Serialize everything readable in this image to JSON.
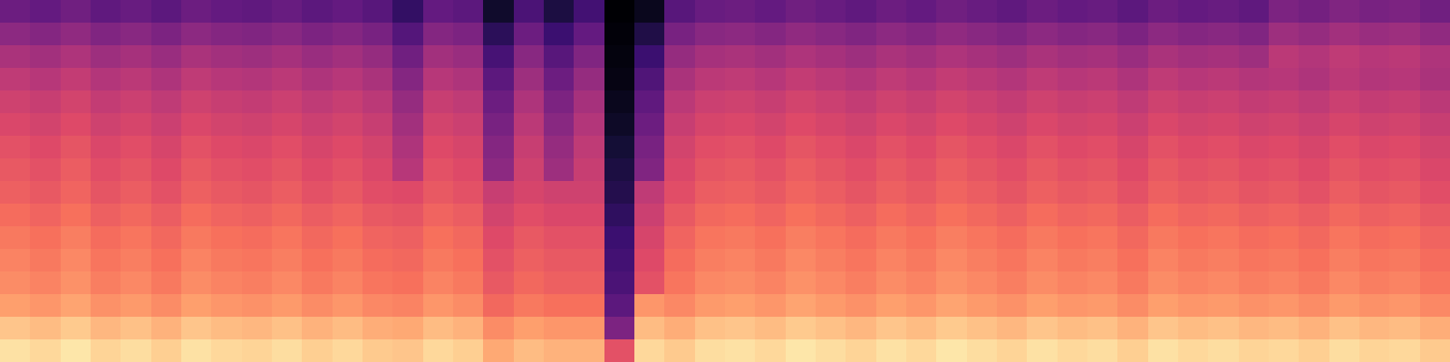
{
  "chart_data": {
    "type": "heatmap",
    "tick_labels": false,
    "zlim": [
      0,
      100
    ],
    "cells": [
      [
        94,
        92,
        95,
        91,
        93,
        90,
        94,
        92,
        91,
        93,
        90,
        92,
        89,
        88,
        92,
        90,
        82,
        86,
        84,
        84,
        62,
        92,
        89,
        93,
        94,
        92,
        95,
        93,
        91,
        94,
        92,
        95,
        93,
        91,
        94,
        92,
        93,
        90,
        94,
        92,
        93,
        91,
        92,
        90,
        93,
        91,
        92,
        89
      ],
      [
        88,
        86,
        89,
        85,
        87,
        84,
        88,
        86,
        85,
        87,
        84,
        86,
        83,
        82,
        86,
        84,
        76,
        80,
        78,
        78,
        36,
        86,
        83,
        87,
        88,
        86,
        89,
        87,
        85,
        88,
        86,
        89,
        87,
        85,
        88,
        86,
        87,
        84,
        88,
        86,
        87,
        85,
        86,
        84,
        87,
        85,
        86,
        83
      ],
      [
        80,
        78,
        81,
        77,
        79,
        76,
        80,
        78,
        77,
        79,
        76,
        78,
        75,
        74,
        78,
        76,
        68,
        72,
        70,
        70,
        28,
        78,
        75,
        79,
        80,
        78,
        81,
        79,
        77,
        80,
        78,
        81,
        79,
        77,
        80,
        78,
        79,
        76,
        80,
        78,
        79,
        77,
        78,
        76,
        79,
        77,
        78,
        75
      ],
      [
        76,
        74,
        77,
        73,
        75,
        72,
        76,
        74,
        73,
        75,
        72,
        74,
        71,
        70,
        74,
        72,
        64,
        68,
        66,
        66,
        24,
        62,
        71,
        75,
        76,
        74,
        77,
        75,
        73,
        76,
        74,
        77,
        75,
        73,
        76,
        74,
        75,
        72,
        76,
        74,
        75,
        73,
        74,
        72,
        75,
        73,
        74,
        71
      ],
      [
        74,
        72,
        75,
        71,
        73,
        70,
        74,
        72,
        71,
        73,
        70,
        72,
        69,
        68,
        72,
        70,
        62,
        66,
        64,
        64,
        22,
        60,
        69,
        73,
        74,
        72,
        75,
        73,
        71,
        74,
        72,
        75,
        73,
        71,
        74,
        72,
        73,
        70,
        74,
        72,
        73,
        71,
        72,
        70,
        73,
        71,
        72,
        69
      ],
      [
        72,
        70,
        73,
        69,
        71,
        68,
        72,
        70,
        69,
        71,
        68,
        70,
        67,
        66,
        70,
        68,
        60,
        64,
        62,
        62,
        20,
        58,
        67,
        71,
        72,
        70,
        73,
        71,
        69,
        72,
        70,
        73,
        71,
        69,
        72,
        70,
        71,
        68,
        72,
        70,
        71,
        69,
        70,
        68,
        71,
        69,
        70,
        67
      ],
      [
        69,
        67,
        70,
        66,
        68,
        65,
        69,
        67,
        66,
        68,
        65,
        67,
        64,
        63,
        67,
        65,
        57,
        61,
        59,
        59,
        17,
        55,
        64,
        68,
        69,
        67,
        70,
        68,
        66,
        69,
        67,
        70,
        68,
        66,
        69,
        67,
        68,
        65,
        69,
        67,
        68,
        66,
        67,
        65,
        68,
        66,
        67,
        64
      ],
      [
        66,
        64,
        67,
        63,
        65,
        62,
        66,
        64,
        63,
        65,
        62,
        64,
        61,
        60,
        64,
        62,
        54,
        58,
        56,
        56,
        14,
        52,
        61,
        65,
        66,
        64,
        67,
        65,
        63,
        66,
        64,
        67,
        65,
        63,
        66,
        64,
        65,
        62,
        66,
        64,
        65,
        63,
        64,
        62,
        65,
        63,
        64,
        61
      ],
      [
        64,
        62,
        65,
        61,
        63,
        60,
        64,
        62,
        61,
        63,
        60,
        62,
        59,
        50,
        62,
        60,
        40,
        56,
        44,
        54,
        12,
        37,
        59,
        63,
        64,
        62,
        65,
        63,
        61,
        64,
        62,
        65,
        63,
        61,
        64,
        62,
        63,
        60,
        64,
        62,
        63,
        61,
        62,
        60,
        63,
        61,
        62,
        59
      ],
      [
        62,
        60,
        63,
        59,
        61,
        58,
        62,
        60,
        59,
        61,
        58,
        60,
        57,
        48,
        60,
        58,
        38,
        54,
        42,
        52,
        10,
        35,
        57,
        61,
        62,
        60,
        63,
        61,
        59,
        62,
        60,
        63,
        61,
        59,
        62,
        60,
        61,
        58,
        62,
        60,
        61,
        59,
        60,
        58,
        61,
        59,
        60,
        57
      ],
      [
        59,
        57,
        60,
        56,
        58,
        55,
        59,
        57,
        56,
        58,
        55,
        57,
        54,
        45,
        57,
        55,
        35,
        51,
        39,
        49,
        7,
        32,
        54,
        58,
        59,
        57,
        60,
        58,
        56,
        59,
        57,
        60,
        58,
        56,
        59,
        57,
        58,
        55,
        59,
        57,
        58,
        56,
        57,
        55,
        58,
        56,
        57,
        54
      ],
      [
        56,
        54,
        57,
        53,
        55,
        52,
        56,
        54,
        53,
        55,
        52,
        54,
        51,
        42,
        54,
        52,
        32,
        48,
        36,
        46,
        5,
        29,
        51,
        55,
        56,
        54,
        57,
        55,
        53,
        56,
        54,
        57,
        55,
        53,
        56,
        54,
        55,
        52,
        56,
        54,
        55,
        53,
        54,
        52,
        55,
        53,
        54,
        51
      ],
      [
        52,
        50,
        53,
        49,
        51,
        48,
        52,
        50,
        49,
        51,
        48,
        50,
        47,
        38,
        50,
        48,
        28,
        44,
        32,
        42,
        3,
        25,
        47,
        51,
        52,
        50,
        53,
        51,
        49,
        52,
        50,
        53,
        51,
        49,
        52,
        50,
        51,
        48,
        52,
        50,
        51,
        49,
        50,
        48,
        51,
        49,
        50,
        47
      ],
      [
        47,
        45,
        48,
        44,
        46,
        43,
        47,
        45,
        44,
        46,
        43,
        45,
        42,
        33,
        45,
        43,
        23,
        39,
        27,
        37,
        2,
        20,
        42,
        46,
        47,
        45,
        48,
        46,
        44,
        47,
        45,
        48,
        46,
        44,
        47,
        45,
        46,
        43,
        47,
        45,
        46,
        44,
        51,
        49,
        52,
        50,
        51,
        48
      ],
      [
        40,
        38,
        41,
        37,
        39,
        36,
        40,
        38,
        37,
        39,
        36,
        38,
        35,
        26,
        38,
        36,
        16,
        32,
        20,
        30,
        1,
        13,
        35,
        39,
        40,
        38,
        41,
        39,
        37,
        40,
        38,
        41,
        39,
        37,
        40,
        38,
        39,
        36,
        40,
        38,
        39,
        37,
        44,
        42,
        45,
        43,
        44,
        41
      ],
      [
        32,
        30,
        33,
        29,
        31,
        28,
        32,
        30,
        29,
        31,
        28,
        30,
        27,
        18,
        30,
        28,
        8,
        24,
        12,
        22,
        0,
        5,
        27,
        31,
        32,
        30,
        33,
        31,
        29,
        32,
        30,
        33,
        31,
        29,
        32,
        30,
        31,
        28,
        32,
        30,
        31,
        29,
        36,
        34,
        37,
        35,
        36,
        33
      ]
    ]
  }
}
